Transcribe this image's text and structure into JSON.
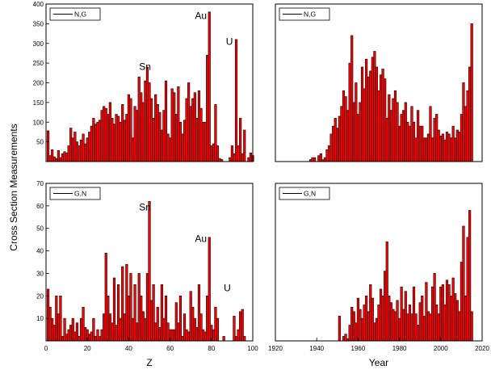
{
  "colors": {
    "fill": "#ff0000",
    "edge": "#000000",
    "frame": "#000000"
  },
  "ylabel": "Cross Section Measurements",
  "chart_data": [
    {
      "type": "bar",
      "legend": "N,G",
      "xlabel": "",
      "xlim": [
        0,
        100
      ],
      "ylim": [
        0,
        400
      ],
      "yticks": [
        50,
        100,
        150,
        200,
        250,
        300,
        350,
        400
      ],
      "xticks": [],
      "annotations": [
        {
          "text": "Sn",
          "x": 45,
          "y": 233
        },
        {
          "text": "Au",
          "x": 72,
          "y": 362
        },
        {
          "text": "U",
          "x": 87,
          "y": 296
        }
      ],
      "x": [
        1,
        2,
        3,
        4,
        5,
        6,
        7,
        8,
        9,
        10,
        11,
        12,
        13,
        14,
        15,
        16,
        17,
        18,
        19,
        20,
        21,
        22,
        23,
        24,
        25,
        26,
        27,
        28,
        29,
        30,
        31,
        32,
        33,
        34,
        35,
        36,
        37,
        38,
        39,
        40,
        41,
        42,
        43,
        44,
        45,
        46,
        47,
        48,
        49,
        50,
        51,
        52,
        53,
        54,
        55,
        56,
        57,
        58,
        59,
        60,
        61,
        62,
        63,
        64,
        65,
        66,
        67,
        68,
        69,
        70,
        71,
        72,
        73,
        74,
        75,
        76,
        77,
        78,
        79,
        80,
        81,
        82,
        83,
        84,
        85,
        86,
        87,
        88,
        89,
        90,
        91,
        92,
        93,
        94,
        95,
        96,
        97,
        98,
        99,
        100
      ],
      "values": [
        78,
        15,
        30,
        12,
        8,
        28,
        10,
        20,
        25,
        22,
        40,
        85,
        60,
        75,
        50,
        40,
        55,
        70,
        45,
        60,
        75,
        90,
        110,
        95,
        100,
        105,
        130,
        140,
        135,
        120,
        150,
        110,
        95,
        120,
        115,
        100,
        145,
        105,
        120,
        170,
        160,
        60,
        140,
        130,
        215,
        175,
        150,
        205,
        240,
        200,
        160,
        110,
        170,
        145,
        125,
        80,
        130,
        205,
        70,
        60,
        185,
        175,
        120,
        190,
        100,
        70,
        105,
        160,
        200,
        140,
        160,
        175,
        110,
        180,
        135,
        100,
        100,
        270,
        380,
        40,
        45,
        145,
        40,
        8,
        5,
        0,
        0,
        0,
        10,
        40,
        20,
        310,
        40,
        110,
        20,
        80,
        0,
        10,
        22,
        15
      ]
    },
    {
      "type": "bar",
      "legend": "N,G",
      "xlabel": "",
      "xlim": [
        1920,
        2020
      ],
      "ylim": [
        0,
        400
      ],
      "yticks": [],
      "xticks": [],
      "annotations": [],
      "x": [
        1937,
        1938,
        1939,
        1940,
        1941,
        1942,
        1943,
        1944,
        1945,
        1946,
        1947,
        1948,
        1949,
        1950,
        1951,
        1952,
        1953,
        1954,
        1955,
        1956,
        1957,
        1958,
        1959,
        1960,
        1961,
        1962,
        1963,
        1964,
        1965,
        1966,
        1967,
        1968,
        1969,
        1970,
        1971,
        1972,
        1973,
        1974,
        1975,
        1976,
        1977,
        1978,
        1979,
        1980,
        1981,
        1982,
        1983,
        1984,
        1985,
        1986,
        1987,
        1988,
        1989,
        1990,
        1991,
        1992,
        1993,
        1994,
        1995,
        1996,
        1997,
        1998,
        1999,
        2000,
        2001,
        2002,
        2003,
        2004,
        2005,
        2006,
        2007,
        2008,
        2009,
        2010,
        2011,
        2012,
        2013,
        2014,
        2015
      ],
      "values": [
        5,
        10,
        10,
        0,
        15,
        20,
        5,
        10,
        30,
        40,
        70,
        90,
        110,
        85,
        115,
        140,
        180,
        165,
        130,
        250,
        320,
        150,
        200,
        120,
        150,
        240,
        185,
        260,
        215,
        230,
        265,
        280,
        240,
        180,
        220,
        235,
        210,
        110,
        170,
        130,
        160,
        180,
        150,
        90,
        120,
        130,
        150,
        100,
        90,
        140,
        100,
        60,
        130,
        90,
        90,
        60,
        60,
        70,
        140,
        60,
        110,
        120,
        80,
        65,
        70,
        55,
        75,
        70,
        60,
        90,
        60,
        80,
        75,
        120,
        200,
        140,
        180,
        240,
        350
      ]
    },
    {
      "type": "bar",
      "legend": "G,N",
      "xlabel": "Z",
      "xlim": [
        0,
        100
      ],
      "ylim": [
        0,
        70
      ],
      "yticks": [
        10,
        20,
        30,
        40,
        50,
        60,
        70
      ],
      "xticks": [
        0,
        20,
        40,
        60,
        80,
        100
      ],
      "annotations": [
        {
          "text": "Sn",
          "x": 45,
          "y": 58
        },
        {
          "text": "Au",
          "x": 72,
          "y": 44
        },
        {
          "text": "U",
          "x": 86,
          "y": 22
        }
      ],
      "x": [
        1,
        2,
        3,
        4,
        5,
        6,
        7,
        8,
        9,
        10,
        11,
        12,
        13,
        14,
        15,
        16,
        17,
        18,
        19,
        20,
        21,
        22,
        23,
        24,
        25,
        26,
        27,
        28,
        29,
        30,
        31,
        32,
        33,
        34,
        35,
        36,
        37,
        38,
        39,
        40,
        41,
        42,
        43,
        44,
        45,
        46,
        47,
        48,
        49,
        50,
        51,
        52,
        53,
        54,
        55,
        56,
        57,
        58,
        59,
        60,
        61,
        62,
        63,
        64,
        65,
        66,
        67,
        68,
        69,
        70,
        71,
        72,
        73,
        74,
        75,
        76,
        77,
        78,
        79,
        80,
        81,
        82,
        83,
        84,
        85,
        86,
        87,
        88,
        89,
        90,
        91,
        92,
        93,
        94,
        95,
        96,
        97,
        98,
        99,
        100
      ],
      "values": [
        23,
        15,
        10,
        7,
        20,
        12,
        20,
        2,
        10,
        3,
        5,
        7,
        10,
        4,
        8,
        2,
        10,
        15,
        6,
        5,
        3,
        4,
        10,
        2,
        5,
        2,
        5,
        12,
        39,
        20,
        12,
        8,
        28,
        7,
        25,
        10,
        33,
        12,
        34,
        20,
        30,
        10,
        25,
        8,
        30,
        20,
        13,
        10,
        30,
        62,
        18,
        25,
        8,
        15,
        6,
        25,
        10,
        20,
        8,
        5,
        5,
        5,
        17,
        8,
        20,
        2,
        12,
        5,
        4,
        22,
        15,
        10,
        6,
        25,
        12,
        5,
        4,
        20,
        46,
        7,
        5,
        15,
        10,
        0,
        0,
        2,
        0,
        0,
        0,
        0,
        11,
        2,
        5,
        13,
        14,
        2,
        0,
        0,
        0,
        0
      ]
    },
    {
      "type": "bar",
      "legend": "G,N",
      "xlabel": "Year",
      "xlim": [
        1920,
        2020
      ],
      "ylim": [
        0,
        70
      ],
      "yticks": [],
      "xticks": [
        1920,
        1940,
        1960,
        1980,
        2000,
        2020
      ],
      "annotations": [],
      "x": [
        1951,
        1952,
        1953,
        1954,
        1955,
        1956,
        1957,
        1958,
        1959,
        1960,
        1961,
        1962,
        1963,
        1964,
        1965,
        1966,
        1967,
        1968,
        1969,
        1970,
        1971,
        1972,
        1973,
        1974,
        1975,
        1976,
        1977,
        1978,
        1979,
        1980,
        1981,
        1982,
        1983,
        1984,
        1985,
        1986,
        1987,
        1988,
        1989,
        1990,
        1991,
        1992,
        1993,
        1994,
        1995,
        1996,
        1997,
        1998,
        1999,
        2000,
        2001,
        2002,
        2003,
        2004,
        2005,
        2006,
        2007,
        2008,
        2009,
        2010,
        2011,
        2012,
        2013,
        2014,
        2015
      ],
      "values": [
        11,
        0,
        2,
        3,
        1,
        7,
        15,
        13,
        8,
        19,
        14,
        10,
        16,
        20,
        13,
        25,
        19,
        8,
        10,
        16,
        23,
        20,
        31,
        44,
        20,
        17,
        14,
        13,
        18,
        10,
        24,
        14,
        22,
        12,
        16,
        12,
        24,
        12,
        7,
        17,
        20,
        11,
        26,
        13,
        12,
        24,
        30,
        16,
        12,
        24,
        25,
        16,
        27,
        25,
        20,
        28,
        21,
        18,
        13,
        35,
        51,
        20,
        46,
        58,
        13
      ]
    }
  ]
}
